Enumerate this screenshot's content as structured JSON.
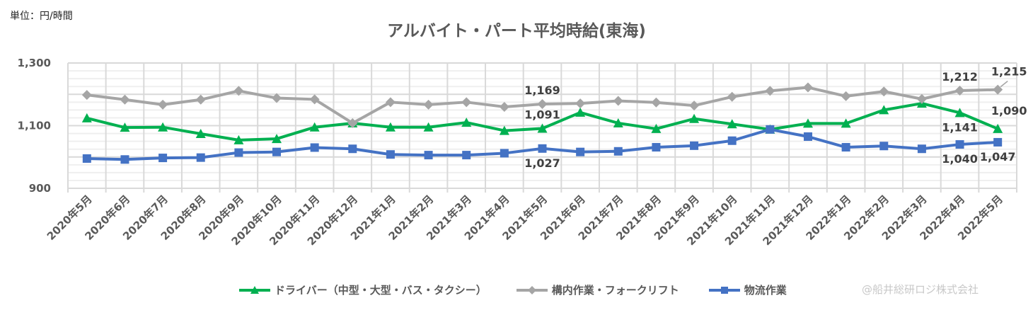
{
  "unit_label": "単位：円/時間",
  "chart_data": {
    "type": "line",
    "title": "アルバイト・パート平均時給(東海)",
    "xlabel": "",
    "ylabel": "",
    "ylim": [
      900,
      1300
    ],
    "yticks": [
      900,
      1100,
      1300
    ],
    "ytick_labels": [
      "900",
      "1,100",
      "1,300"
    ],
    "grid": true,
    "legend_position": "bottom",
    "categories": [
      "2020年5月",
      "2020年6月",
      "2020年7月",
      "2020年8月",
      "2020年9月",
      "2020年10月",
      "2020年11月",
      "2020年12月",
      "2021年1月",
      "2021年2月",
      "2021年3月",
      "2021年4月",
      "2021年5月",
      "2021年6月",
      "2021年7月",
      "2021年8月",
      "2021年9月",
      "2021年10月",
      "2021年11月",
      "2021年12月",
      "2022年1月",
      "2022年2月",
      "2022年3月",
      "2022年4月",
      "2022年5月"
    ],
    "series": [
      {
        "name": "ドライバー（中型・大型・バス・タクシー）",
        "color": "#00b050",
        "marker": "triangle",
        "values": [
          1124,
          1094,
          1095,
          1074,
          1054,
          1058,
          1095,
          1108,
          1095,
          1095,
          1110,
          1084,
          1091,
          1142,
          1108,
          1090,
          1122,
          1105,
          1088,
          1107,
          1107,
          1150,
          1171,
          1141,
          1090
        ]
      },
      {
        "name": "構内作業・フォークリフト",
        "color": "#a5a5a5",
        "marker": "diamond",
        "values": [
          1198,
          1183,
          1167,
          1183,
          1211,
          1188,
          1184,
          1108,
          1175,
          1167,
          1175,
          1160,
          1169,
          1171,
          1179,
          1174,
          1164,
          1192,
          1211,
          1222,
          1194,
          1209,
          1185,
          1212,
          1215
        ]
      },
      {
        "name": "物流作業",
        "color": "#4472c4",
        "marker": "square",
        "values": [
          995,
          992,
          997,
          998,
          1014,
          1016,
          1030,
          1026,
          1008,
          1006,
          1006,
          1012,
          1027,
          1016,
          1018,
          1031,
          1036,
          1052,
          1088,
          1065,
          1031,
          1035,
          1026,
          1040,
          1047
        ]
      }
    ],
    "data_labels": [
      {
        "series": 1,
        "index": 12,
        "text": "1,169",
        "pos": "above"
      },
      {
        "series": 0,
        "index": 12,
        "text": "1,091",
        "pos": "above"
      },
      {
        "series": 2,
        "index": 12,
        "text": "1,027",
        "pos": "below"
      },
      {
        "series": 1,
        "index": 23,
        "text": "1,212",
        "pos": "above"
      },
      {
        "series": 1,
        "index": 24,
        "text": "1,215",
        "pos": "above-right"
      },
      {
        "series": 0,
        "index": 23,
        "text": "1,141",
        "pos": "below"
      },
      {
        "series": 0,
        "index": 24,
        "text": "1,090",
        "pos": "above-right"
      },
      {
        "series": 2,
        "index": 23,
        "text": "1,040",
        "pos": "below"
      },
      {
        "series": 2,
        "index": 24,
        "text": "1,047",
        "pos": "below"
      }
    ]
  },
  "watermark": "@船井総研ロジ株式会社"
}
